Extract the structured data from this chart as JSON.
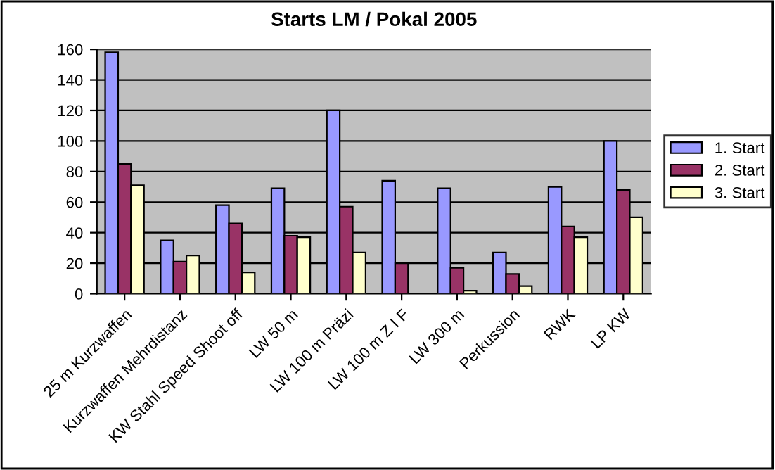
{
  "chart_data": {
    "type": "bar",
    "title": "Starts LM / Pokal 2005",
    "categories": [
      "25 m Kurzwaffen",
      "Kurzwaffen Mehrdistanz",
      "KW Stahl Speed Shoot off",
      "LW 50 m",
      "LW 100 m Präzi",
      "LW 100 m Z I F",
      "LW 300 m",
      "Perkussion",
      "RWK",
      "LP KW"
    ],
    "series": [
      {
        "name": "1. Start",
        "color": "#9999ff",
        "values": [
          158,
          35,
          58,
          69,
          120,
          74,
          69,
          27,
          70,
          100
        ]
      },
      {
        "name": "2. Start",
        "color": "#993366",
        "values": [
          85,
          21,
          46,
          38,
          57,
          20,
          17,
          13,
          44,
          68
        ]
      },
      {
        "name": "3. Start",
        "color": "#ffffcc",
        "values": [
          71,
          25,
          14,
          37,
          27,
          null,
          2,
          5,
          37,
          50
        ]
      }
    ],
    "ylim": [
      0,
      160
    ],
    "yticks": [
      0,
      20,
      40,
      60,
      80,
      100,
      120,
      140,
      160
    ],
    "grid": "y",
    "legend": "right"
  }
}
